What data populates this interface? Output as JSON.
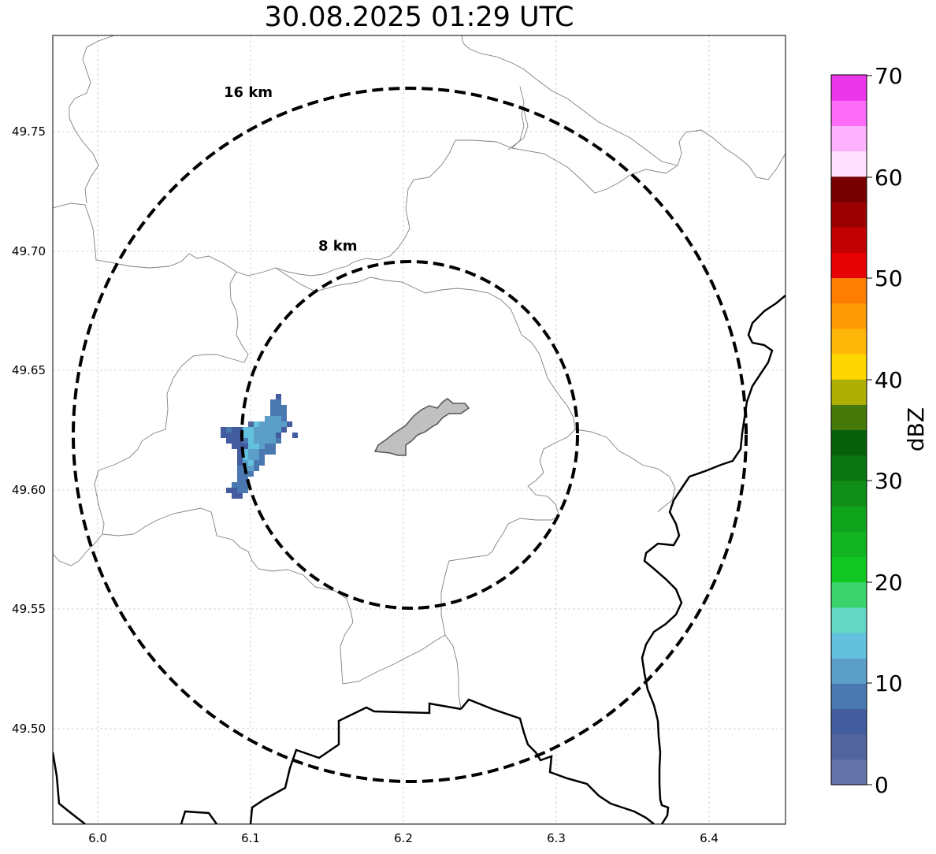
{
  "title": "30.08.2025 01:29 UTC",
  "map": {
    "lon_range": [
      5.97,
      6.45
    ],
    "lat_range": [
      49.46,
      49.79
    ],
    "x_ticks": [
      "6.0",
      "6.1",
      "6.2",
      "6.3",
      "6.4"
    ],
    "y_ticks": [
      "49.75",
      "49.70",
      "49.65",
      "49.60",
      "49.55",
      "49.50"
    ],
    "grid": true,
    "radar_center": {
      "lon": 6.204,
      "lat": 49.623
    },
    "rings": [
      {
        "label": "16 km",
        "radius_km": 16
      },
      {
        "label": "8 km",
        "radius_km": 8
      }
    ],
    "boundary_color": "#000000",
    "commune_border_color": "#808080",
    "highlight_area_color": "#c0c0c0"
  },
  "colorbar": {
    "label": "dBZ",
    "min": 0,
    "max": 70,
    "ticks": [
      "70",
      "60",
      "50",
      "40",
      "30",
      "20",
      "10",
      "0"
    ],
    "colors_bottom_to_top": [
      "#6573a8",
      "#53649c",
      "#425c9f",
      "#4a79b1",
      "#5b9fc8",
      "#63c1dd",
      "#63d7c4",
      "#3ad36c",
      "#13c723",
      "#12b421",
      "#0fa31b",
      "#0f8d17",
      "#0a7511",
      "#065f0b",
      "#46790a",
      "#afae05",
      "#fed702",
      "#feb609",
      "#fe9a04",
      "#fe7e02",
      "#e50104",
      "#c10102",
      "#9c0001",
      "#760000",
      "#ffe0fe",
      "#feb2fd",
      "#fe6cf9",
      "#ea35e8"
    ]
  }
}
